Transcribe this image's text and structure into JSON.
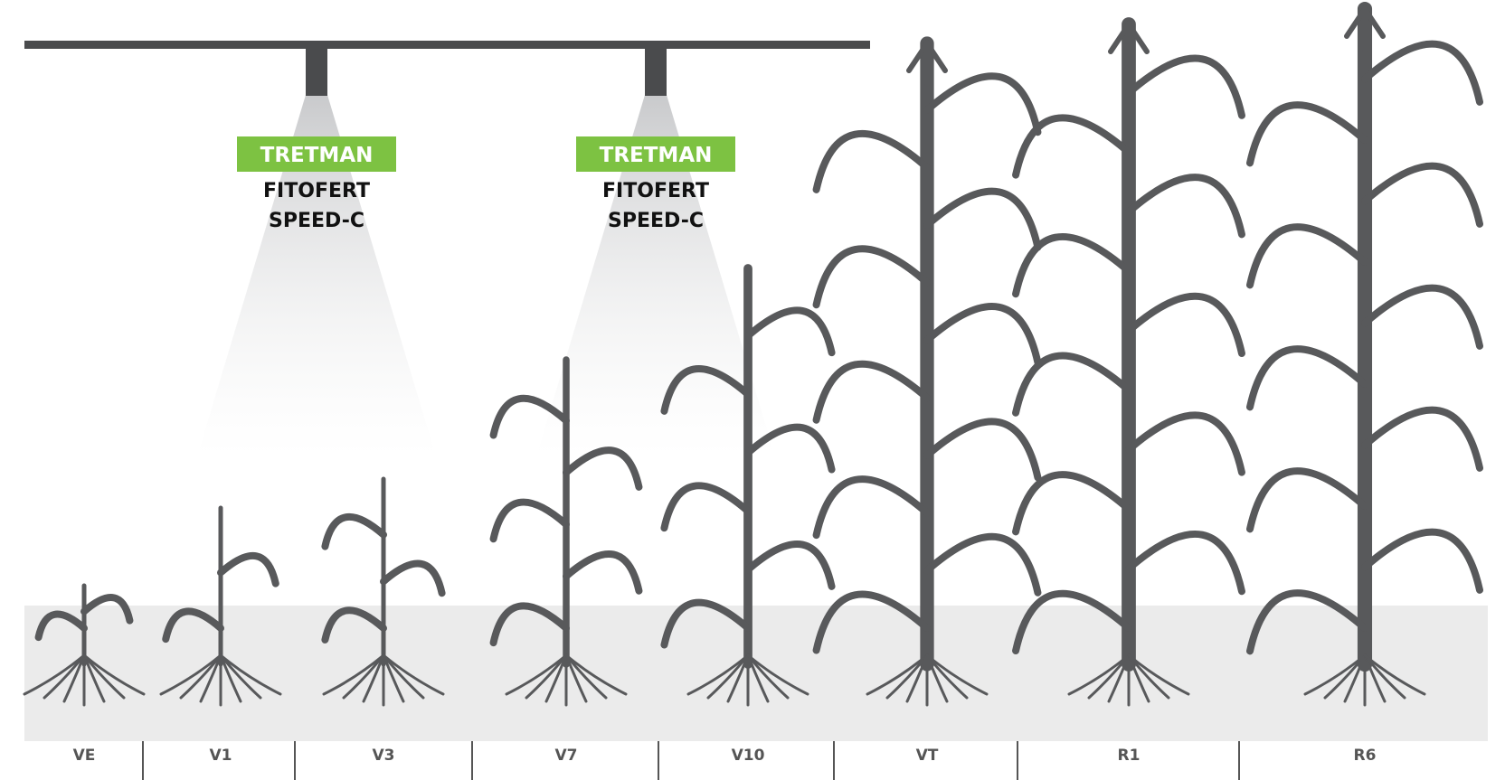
{
  "sprayers": [
    {
      "product": "TRETMAN",
      "lines": [
        "FITOFERT",
        "SPEED-C"
      ]
    },
    {
      "product": "TRETMAN",
      "lines": [
        "FITOFERT",
        "SPEED-C"
      ]
    }
  ],
  "stages": [
    "VE",
    "V1",
    "V3",
    "V7",
    "V10",
    "VT",
    "R1",
    "R6"
  ]
}
